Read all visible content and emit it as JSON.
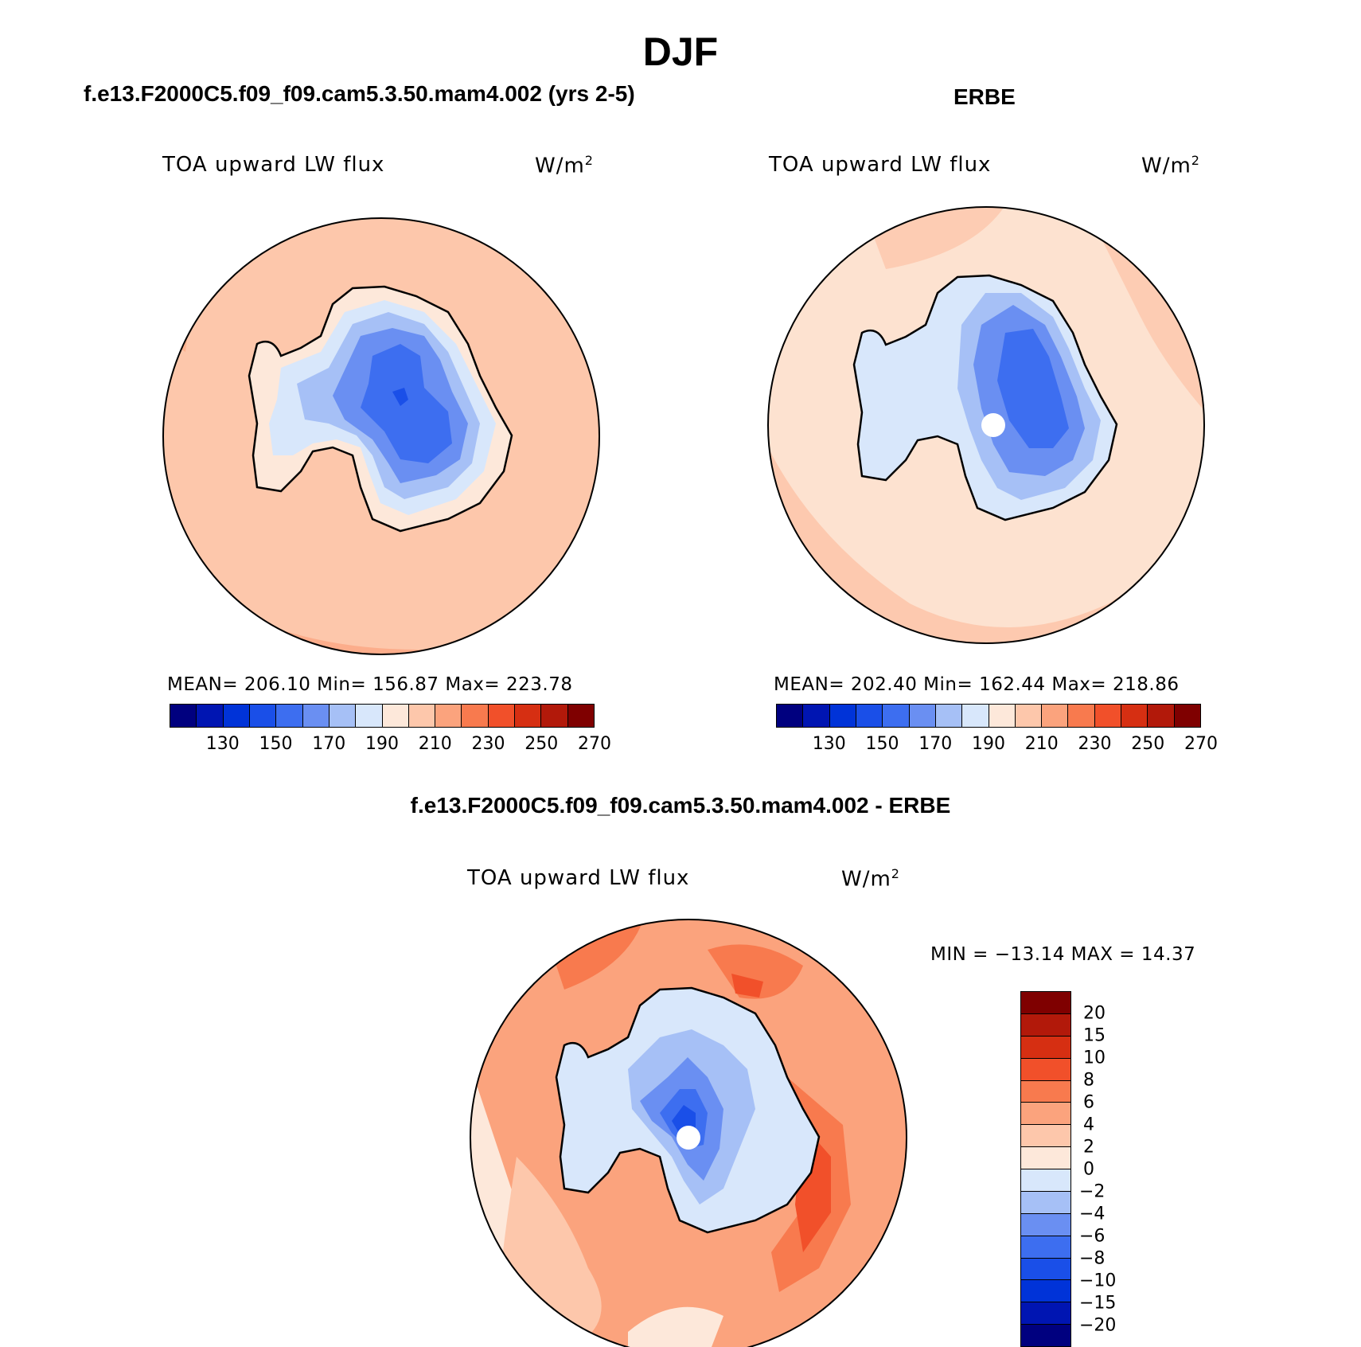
{
  "title": "DJF",
  "colors": {
    "ocean_model": "#fdc7ab",
    "ocean_obs": "#fde2d0",
    "land_outline": "#000000"
  },
  "panels": [
    {
      "title": "f.e13.F2000C5.f09_f09.cam5.3.50.mam4.002 (yrs 2-5)",
      "variable": "TOA upward LW flux",
      "units": "W/m",
      "units_sup": "2",
      "stats": "MEAN= 206.10   Min= 156.87   Max= 223.78",
      "colorbar": {
        "colors": [
          "#00007f",
          "#0015b2",
          "#0033d8",
          "#1a4fe8",
          "#3d6ef0",
          "#6a8ff2",
          "#a6c0f6",
          "#d8e7fb",
          "#fde8da",
          "#fdc7ab",
          "#fba37d",
          "#f87a4e",
          "#f1502a",
          "#d62f12",
          "#b2190a",
          "#7f0000"
        ],
        "labels": [
          "130",
          "150",
          "170",
          "190",
          "210",
          "230",
          "250",
          "270"
        ]
      }
    },
    {
      "title": "ERBE",
      "variable": "TOA upward LW flux",
      "units": "W/m",
      "units_sup": "2",
      "stats": "MEAN= 202.40   Min= 162.44   Max= 218.86",
      "colorbar": {
        "colors": [
          "#00007f",
          "#0015b2",
          "#0033d8",
          "#1a4fe8",
          "#3d6ef0",
          "#6a8ff2",
          "#a6c0f6",
          "#d8e7fb",
          "#fde8da",
          "#fdc7ab",
          "#fba37d",
          "#f87a4e",
          "#f1502a",
          "#d62f12",
          "#b2190a",
          "#7f0000"
        ],
        "labels": [
          "130",
          "150",
          "170",
          "190",
          "210",
          "230",
          "250",
          "270"
        ]
      }
    }
  ],
  "diff": {
    "title": "f.e13.F2000C5.f09_f09.cam5.3.50.mam4.002 - ERBE",
    "variable": "TOA upward LW flux",
    "units": "W/m",
    "units_sup": "2",
    "stats": "MIN = −13.14 MAX =  14.37",
    "colorbar": {
      "colors": [
        "#7f0000",
        "#b2190a",
        "#d62f12",
        "#f1502a",
        "#f87a4e",
        "#fba37d",
        "#fdc7ab",
        "#fde8da",
        "#d8e7fb",
        "#a6c0f6",
        "#6a8ff2",
        "#3d6ef0",
        "#1a4fe8",
        "#0033d8",
        "#0015b2",
        "#00007f"
      ],
      "labels": [
        "20",
        "15",
        "10",
        "8",
        "6",
        "4",
        "2",
        "0",
        "−2",
        "−4",
        "−6",
        "−8",
        "−10",
        "−15",
        "−20"
      ]
    }
  }
}
